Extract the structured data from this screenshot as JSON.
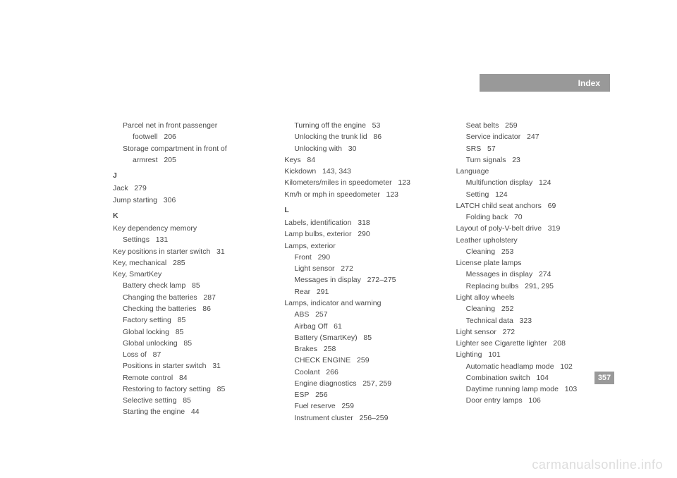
{
  "header": {
    "title": "Index"
  },
  "page_number": "357",
  "watermark": "carmanualsonline.info",
  "col1": [
    {
      "cls": "sub",
      "text": "Parcel net in front passenger"
    },
    {
      "cls": "sub2",
      "text": "footwell   206"
    },
    {
      "cls": "sub",
      "text": "Storage compartment in front of"
    },
    {
      "cls": "sub2",
      "text": "armrest   205"
    },
    {
      "cls": "letter",
      "text": "J"
    },
    {
      "cls": "entry",
      "text": "Jack   279"
    },
    {
      "cls": "entry",
      "text": "Jump starting   306"
    },
    {
      "cls": "letter",
      "text": "K"
    },
    {
      "cls": "entry",
      "text": "Key dependency memory"
    },
    {
      "cls": "sub",
      "text": "Settings   131"
    },
    {
      "cls": "entry",
      "text": "Key positions in starter switch   31"
    },
    {
      "cls": "entry",
      "text": "Key, mechanical   285"
    },
    {
      "cls": "entry",
      "text": "Key, SmartKey"
    },
    {
      "cls": "sub",
      "text": "Battery check lamp   85"
    },
    {
      "cls": "sub",
      "text": "Changing the batteries   287"
    },
    {
      "cls": "sub",
      "text": "Checking the batteries   86"
    },
    {
      "cls": "sub",
      "text": "Factory setting   85"
    },
    {
      "cls": "sub",
      "text": "Global locking   85"
    },
    {
      "cls": "sub",
      "text": "Global unlocking   85"
    },
    {
      "cls": "sub",
      "text": "Loss of   87"
    },
    {
      "cls": "sub",
      "text": "Positions in starter switch   31"
    },
    {
      "cls": "sub",
      "text": "Remote control   84"
    },
    {
      "cls": "sub",
      "text": "Restoring to factory setting   85"
    },
    {
      "cls": "sub",
      "text": "Selective setting   85"
    },
    {
      "cls": "sub",
      "text": "Starting the engine   44"
    }
  ],
  "col2": [
    {
      "cls": "sub",
      "text": "Turning off the engine   53"
    },
    {
      "cls": "sub",
      "text": "Unlocking the trunk lid   86"
    },
    {
      "cls": "sub",
      "text": "Unlocking with   30"
    },
    {
      "cls": "entry",
      "text": "Keys   84"
    },
    {
      "cls": "entry",
      "text": "Kickdown   143, 343"
    },
    {
      "cls": "entry",
      "text": "Kilometers/miles in speedometer   123"
    },
    {
      "cls": "entry",
      "text": "Km/h or mph in speedometer   123"
    },
    {
      "cls": "letter",
      "text": "L"
    },
    {
      "cls": "entry",
      "text": "Labels, identification   318"
    },
    {
      "cls": "entry",
      "text": "Lamp bulbs, exterior   290"
    },
    {
      "cls": "entry",
      "text": "Lamps, exterior"
    },
    {
      "cls": "sub",
      "text": "Front   290"
    },
    {
      "cls": "sub",
      "text": "Light sensor   272"
    },
    {
      "cls": "sub",
      "text": "Messages in display   272–275"
    },
    {
      "cls": "sub",
      "text": "Rear   291"
    },
    {
      "cls": "entry",
      "text": "Lamps, indicator and warning"
    },
    {
      "cls": "sub",
      "text": "ABS   257"
    },
    {
      "cls": "sub",
      "text": "Airbag Off   61"
    },
    {
      "cls": "sub",
      "text": "Battery (SmartKey)   85"
    },
    {
      "cls": "sub",
      "text": "Brakes   258"
    },
    {
      "cls": "sub",
      "text": "CHECK ENGINE   259"
    },
    {
      "cls": "sub",
      "text": "Coolant   266"
    },
    {
      "cls": "sub",
      "text": "Engine diagnostics   257, 259"
    },
    {
      "cls": "sub",
      "text": "ESP   256"
    },
    {
      "cls": "sub",
      "text": "Fuel reserve   259"
    },
    {
      "cls": "sub",
      "text": "Instrument cluster   256–259"
    }
  ],
  "col3": [
    {
      "cls": "sub",
      "text": "Seat belts   259"
    },
    {
      "cls": "sub",
      "text": "Service indicator   247"
    },
    {
      "cls": "sub",
      "text": "SRS   57"
    },
    {
      "cls": "sub",
      "text": "Turn signals   23"
    },
    {
      "cls": "entry",
      "text": "Language"
    },
    {
      "cls": "sub",
      "text": "Multifunction display   124"
    },
    {
      "cls": "sub",
      "text": "Setting   124"
    },
    {
      "cls": "entry",
      "text": "LATCH child seat anchors   69"
    },
    {
      "cls": "sub",
      "text": "Folding back   70"
    },
    {
      "cls": "entry",
      "text": "Layout of poly-V-belt drive   319"
    },
    {
      "cls": "entry",
      "text": "Leather upholstery"
    },
    {
      "cls": "sub",
      "text": "Cleaning   253"
    },
    {
      "cls": "entry",
      "text": "License plate lamps"
    },
    {
      "cls": "sub",
      "text": "Messages in display   274"
    },
    {
      "cls": "sub",
      "text": "Replacing bulbs   291, 295"
    },
    {
      "cls": "entry",
      "text": "Light alloy wheels"
    },
    {
      "cls": "sub",
      "text": "Cleaning   252"
    },
    {
      "cls": "sub",
      "text": "Technical data   323"
    },
    {
      "cls": "entry",
      "text": "Light sensor   272"
    },
    {
      "cls": "entry",
      "text": "Lighter see Cigarette lighter   208"
    },
    {
      "cls": "entry",
      "text": "Lighting   101"
    },
    {
      "cls": "sub",
      "text": "Automatic headlamp mode   102"
    },
    {
      "cls": "sub",
      "text": "Combination switch   104"
    },
    {
      "cls": "sub",
      "text": "Daytime running lamp mode   103"
    },
    {
      "cls": "sub",
      "text": "Door entry lamps   106"
    }
  ]
}
